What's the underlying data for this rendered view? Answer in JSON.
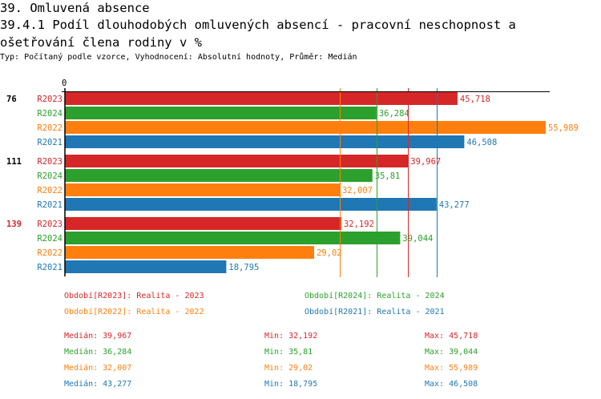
{
  "header": {
    "section": "39. Omluvená absence",
    "title": "39.4.1 Podíl dlouhodobých omluvených absencí - pracovní neschopnost a ošetřování člena rodiny v %",
    "subtitle": "Typ: Počítaný podle vzorce, Vyhodnocení: Absolutní hodnoty, Průměr: Medián"
  },
  "chart_data": {
    "type": "bar",
    "orientation": "horizontal",
    "x_tick": "0",
    "xlim": [
      0,
      56
    ],
    "groups": [
      {
        "label": "76",
        "color": "#000000"
      },
      {
        "label": "111",
        "color": "#000000"
      },
      {
        "label": "139",
        "color": "#d62728"
      }
    ],
    "series": [
      {
        "name": "R2023",
        "color": "#d62728",
        "values": [
          45.718,
          39.967,
          32.192
        ],
        "labels": [
          "45,718",
          "39,967",
          "32,192"
        ]
      },
      {
        "name": "R2024",
        "color": "#2ca02c",
        "values": [
          36.284,
          35.81,
          39.044
        ],
        "labels": [
          "36,284",
          "35,81",
          "39,044"
        ]
      },
      {
        "name": "R2022",
        "color": "#ff7f0e",
        "values": [
          55.989,
          32.007,
          29.02
        ],
        "labels": [
          "55,989",
          "32,007",
          "29,02"
        ]
      },
      {
        "name": "R2021",
        "color": "#1f77b4",
        "values": [
          46.508,
          43.277,
          18.795
        ],
        "labels": [
          "46,508",
          "43,277",
          "18,795"
        ]
      }
    ],
    "median_lines": [
      {
        "series": "R2023",
        "value": 39.967
      },
      {
        "series": "R2024",
        "value": 36.284
      },
      {
        "series": "R2022",
        "value": 32.007
      },
      {
        "series": "R2021",
        "value": 43.277
      }
    ]
  },
  "legend": [
    {
      "text": "Období[R2023]: Realita - 2023",
      "color": "#d62728"
    },
    {
      "text": "Období[R2024]: Realita - 2024",
      "color": "#2ca02c"
    },
    {
      "text": "Období[R2022]: Realita - 2022",
      "color": "#ff7f0e"
    },
    {
      "text": "Období[R2021]: Realita - 2021",
      "color": "#1f77b4"
    }
  ],
  "stats": [
    {
      "median": "Medián: 39,967",
      "min": "Min: 32,192",
      "max": "Max: 45,718",
      "color": "#d62728"
    },
    {
      "median": "Medián: 36,284",
      "min": "Min: 35,81",
      "max": "Max: 39,044",
      "color": "#2ca02c"
    },
    {
      "median": "Medián: 32,007",
      "min": "Min: 29,02",
      "max": "Max: 55,989",
      "color": "#ff7f0e"
    },
    {
      "median": "Medián: 43,277",
      "min": "Min: 18,795",
      "max": "Max: 46,508",
      "color": "#1f77b4"
    }
  ]
}
